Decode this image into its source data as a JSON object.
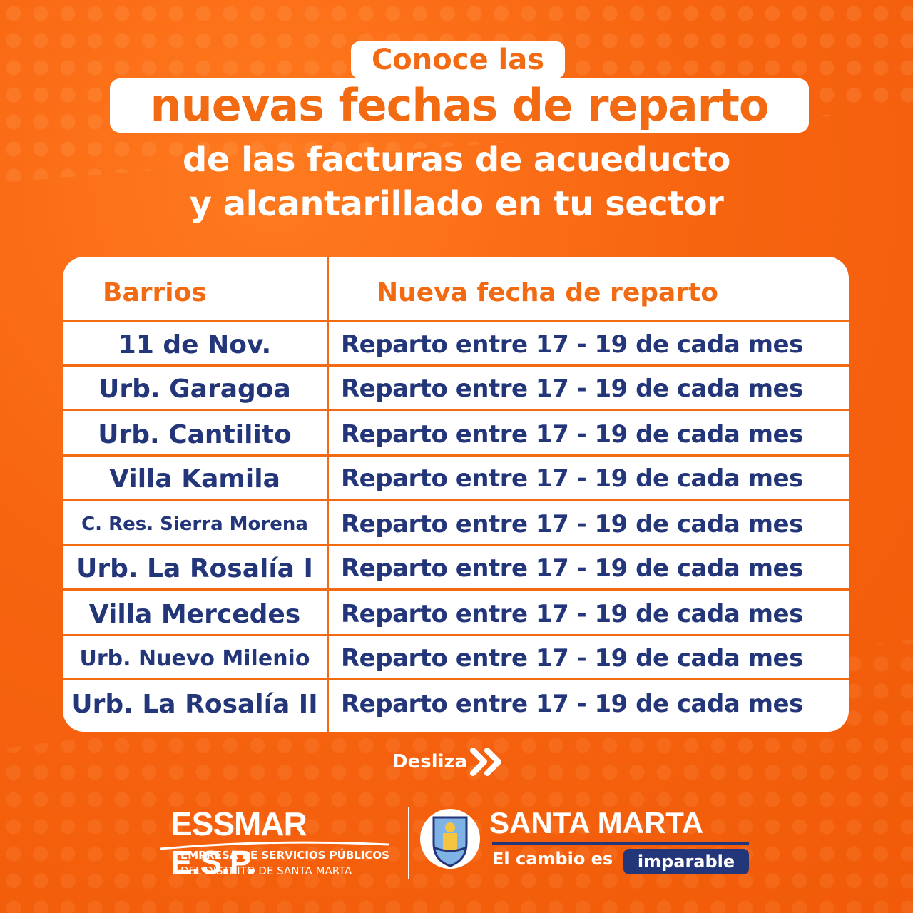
{
  "header": {
    "line1": "Conoce las",
    "line2": "nuevas fechas de reparto",
    "line3": "de las facturas de acueducto",
    "line4": "y alcantarillado en tu sector"
  },
  "table": {
    "columns": [
      "Barrios",
      "Nueva fecha de reparto"
    ],
    "rows": [
      {
        "barrio": "11 de Nov.",
        "fecha": "Reparto entre 17 - 19 de cada mes"
      },
      {
        "barrio": "Urb. Garagoa",
        "fecha": "Reparto entre 17 - 19 de cada mes"
      },
      {
        "barrio": "Urb. Cantilito",
        "fecha": "Reparto entre 17 - 19 de cada mes"
      },
      {
        "barrio": "Villa Kamila",
        "fecha": "Reparto entre 17 - 19 de cada mes"
      },
      {
        "barrio": "C. Res. Sierra Morena",
        "fecha": "Reparto entre 17 - 19 de cada mes"
      },
      {
        "barrio": "Urb. La Rosalía I",
        "fecha": "Reparto entre 17 - 19 de cada mes"
      },
      {
        "barrio": "Villa Mercedes",
        "fecha": "Reparto entre 17 - 19 de cada mes"
      },
      {
        "barrio": "Urb. Nuevo Milenio",
        "fecha": "Reparto entre 17 - 19 de cada mes"
      },
      {
        "barrio": "Urb. La Rosalía II",
        "fecha": "Reparto entre 17 - 19 de cada mes"
      }
    ]
  },
  "swipe": {
    "label": "Desliza",
    "icon": "double-chevron-right-icon"
  },
  "footer": {
    "essmar": {
      "name": "ESSMAR E.S.P.",
      "line1": "EMPRESA DE SERVICIOS PÚBLICOS",
      "line2": "DEL DISTRITO DE SANTA MARTA"
    },
    "santa_marta": {
      "name": "SANTA MARTA",
      "tagline": "El cambio es",
      "highlight": "imparable",
      "crest_icon": "city-crest-icon"
    }
  },
  "colors": {
    "background": "#f76410",
    "accent_orange": "#f26a12",
    "text_navy": "#23367a",
    "white": "#ffffff"
  }
}
